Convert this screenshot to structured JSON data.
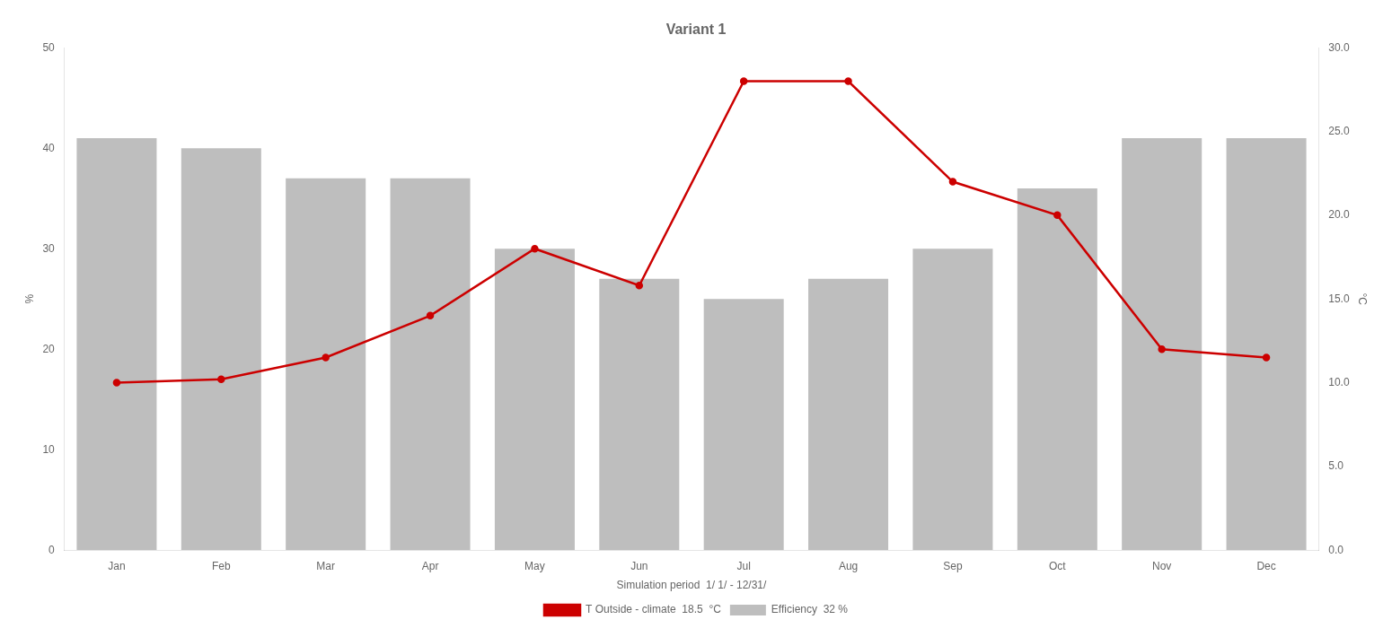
{
  "chart_data": {
    "type": "bar",
    "title": "Variant 1",
    "xlabel": "Simulation period  1/ 1/ - 12/31/",
    "ylabel": "%",
    "y2label": "°C",
    "categories": [
      "Jan",
      "Feb",
      "Mar",
      "Apr",
      "May",
      "Jun",
      "Jul",
      "Aug",
      "Sep",
      "Oct",
      "Nov",
      "Dec"
    ],
    "series": [
      {
        "name": "Efficiency  32 %",
        "type": "bar",
        "color": "#BEBEBE",
        "values": [
          41,
          40,
          37,
          37,
          30,
          27,
          25,
          27,
          30,
          36,
          41,
          41
        ]
      },
      {
        "name": "T Outside - climate  18.5  °C",
        "type": "line",
        "color": "#CC0000",
        "axis": "y2",
        "values": [
          10.0,
          10.2,
          11.5,
          14.0,
          18.0,
          15.8,
          28.0,
          28.0,
          22.0,
          20.0,
          12.0,
          11.5
        ]
      }
    ],
    "ylim": [
      0,
      50
    ],
    "yticks": [
      0,
      10,
      20,
      30,
      40,
      50
    ],
    "y2lim": [
      0.0,
      30.0
    ],
    "y2ticks": [
      {
        "value": 0,
        "label": "0.0"
      },
      {
        "value": 5,
        "label": "5.0"
      },
      {
        "value": 10,
        "label": "10.0"
      },
      {
        "value": 15,
        "label": "15.0"
      },
      {
        "value": 20,
        "label": "20.0"
      },
      {
        "value": 25,
        "label": "25.0"
      },
      {
        "value": 30,
        "label": "30.0"
      }
    ],
    "legend": "bottom",
    "grid": false
  }
}
